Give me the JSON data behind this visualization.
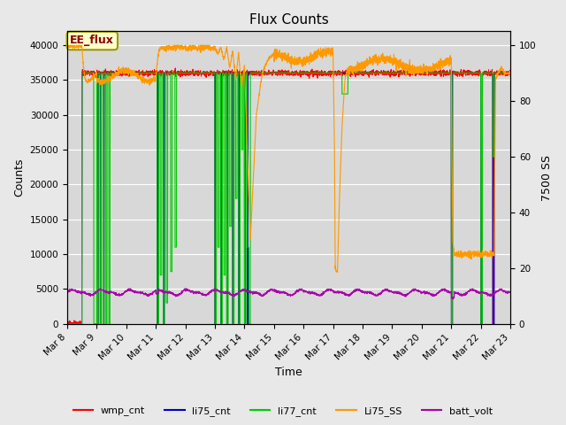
{
  "title": "Flux Counts",
  "xlabel": "Time",
  "ylabel_left": "Counts",
  "ylabel_right": "7500 SS",
  "ylim_left": [
    0,
    42000
  ],
  "ylim_right": [
    0,
    105
  ],
  "xtick_labels": [
    "Mar 8",
    "Mar 9",
    "Mar 10",
    "Mar 11",
    "Mar 12",
    "Mar 13",
    "Mar 14",
    "Mar 15",
    "Mar 16",
    "Mar 17",
    "Mar 18",
    "Mar 19",
    "Mar 20",
    "Mar 21",
    "Mar 22",
    "Mar 23"
  ],
  "annotation_text": "EE_flux",
  "legend_labels": [
    "wmp_cnt",
    "li75_cnt",
    "li77_cnt",
    "Li75_SS",
    "batt_volt"
  ],
  "legend_colors": [
    "#ff0000",
    "#0000cc",
    "#00cc00",
    "#ff9900",
    "#aa00aa"
  ],
  "background_color": "#d8d8d8",
  "fig_bg_color": "#e8e8e8",
  "title_fontsize": 11,
  "axis_fontsize": 9,
  "tick_fontsize": 7.5
}
